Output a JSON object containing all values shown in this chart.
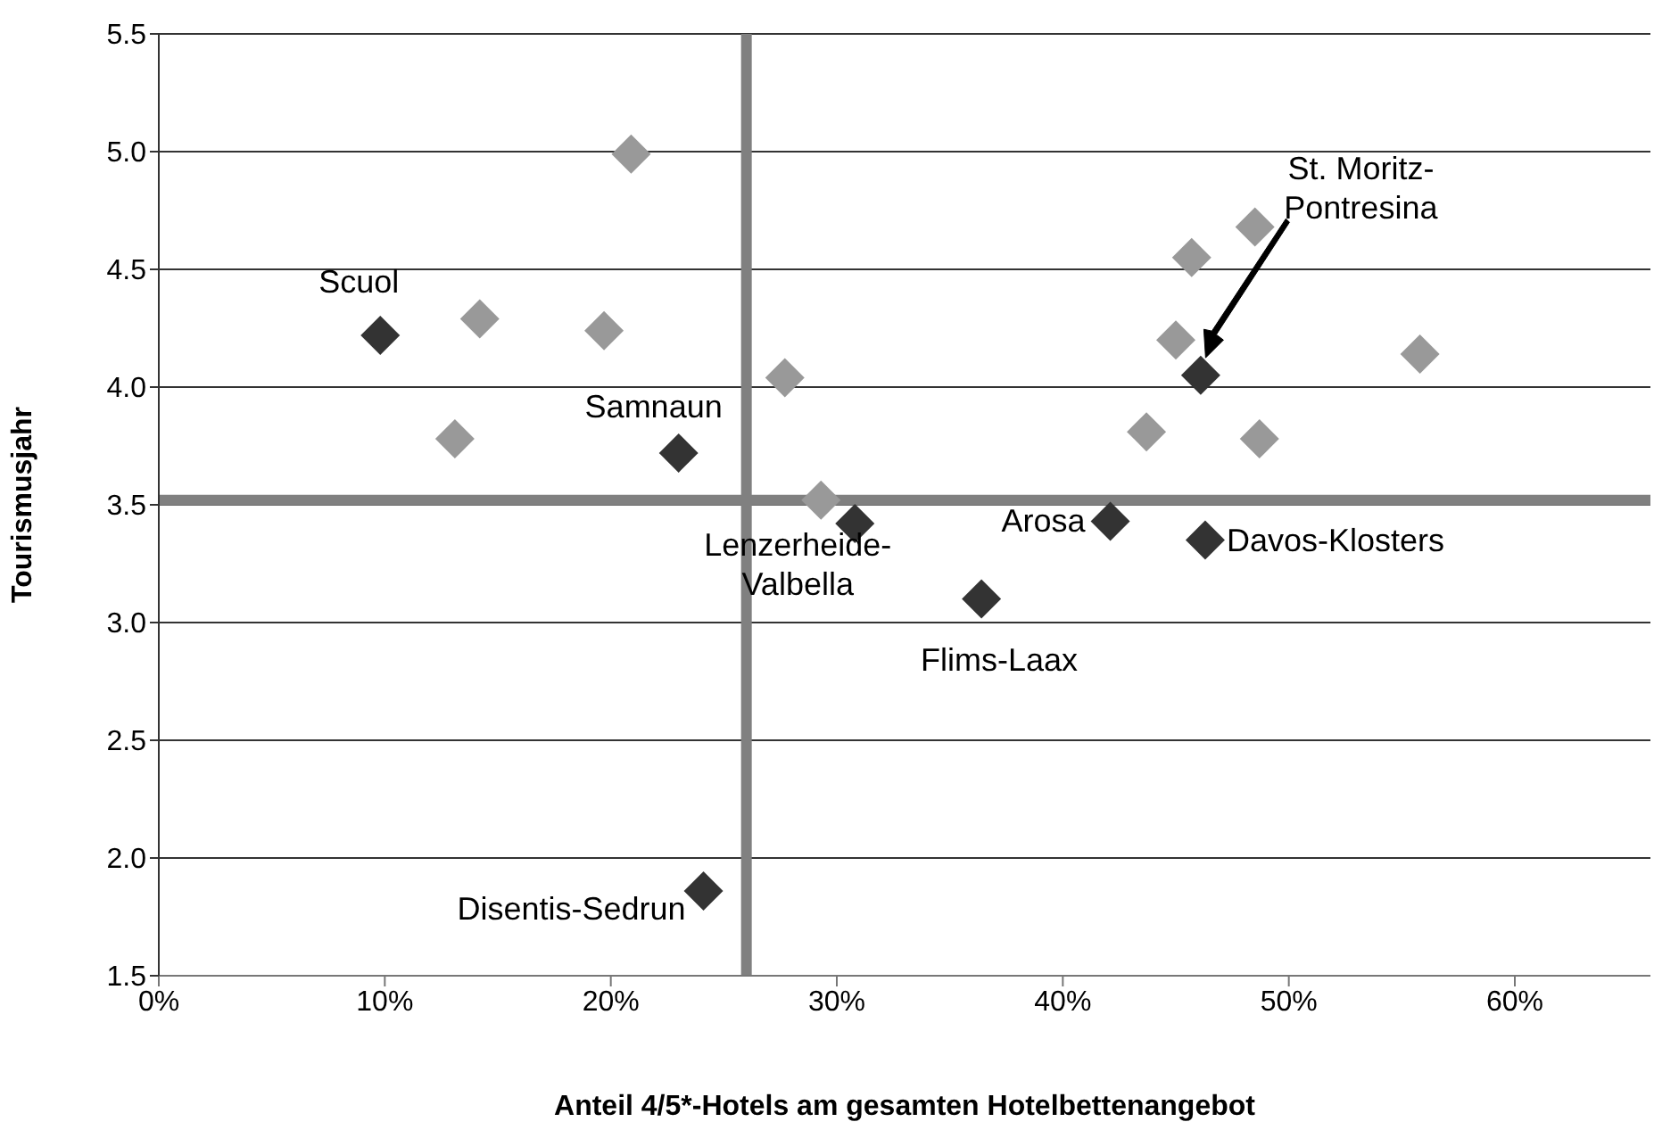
{
  "chart_data": {
    "type": "scatter",
    "xlabel": "Anteil 4/5*-Hotels am gesamten Hotelbettenangebot",
    "ylabel": "Tourismusjahr",
    "xlim": [
      0,
      66
    ],
    "xticks": [
      {
        "value": 0,
        "label": "0%"
      },
      {
        "value": 10,
        "label": "10%"
      },
      {
        "value": 20,
        "label": "20%"
      },
      {
        "value": 30,
        "label": "30%"
      },
      {
        "value": 40,
        "label": "40%"
      },
      {
        "value": 50,
        "label": "50%"
      },
      {
        "value": 60,
        "label": "60%"
      }
    ],
    "ylim": [
      1.5,
      5.5
    ],
    "yticks": [
      1.5,
      {
        "value": 2,
        "label": "2.0"
      },
      2.5,
      {
        "value": 3,
        "label": "3.0"
      },
      3.5,
      {
        "value": 4,
        "label": "4.0"
      },
      4.5,
      {
        "value": 5,
        "label": "5.0"
      },
      5.5
    ],
    "grid": "y",
    "marker": "diamond",
    "legend": false,
    "series": [
      {
        "color": "#999999",
        "x": [
          14.2,
          19.7,
          20.9,
          13.1,
          27.7,
          29.3,
          45.0,
          45.7,
          48.5,
          43.7,
          48.7,
          55.8
        ],
        "values": [
          4.29,
          4.24,
          4.99,
          3.78,
          4.04,
          3.52,
          4.2,
          4.55,
          4.68,
          3.81,
          3.78,
          4.14
        ]
      },
      {
        "color": "#333333",
        "x": [
          9.8,
          23.0,
          30.8,
          42.1,
          46.3,
          46.1,
          36.4,
          24.1
        ],
        "values": [
          4.22,
          3.72,
          3.42,
          3.43,
          3.35,
          4.05,
          3.1,
          1.86
        ]
      }
    ],
    "ref_lines": [
      {
        "axis": "y",
        "value": 3.52,
        "color": "#808080"
      },
      {
        "axis": "x",
        "value": 26,
        "color": "#808080"
      }
    ],
    "annotations": [
      {
        "text": "Scuol",
        "x": 9.8,
        "y": 4.22
      },
      {
        "text": "Samnaun",
        "x": 23.0,
        "y": 3.72
      },
      {
        "text": "Lenzerheide-Valbella",
        "x": 30.8,
        "y": 3.42
      },
      {
        "text": "Arosa",
        "x": 42.1,
        "y": 3.43
      },
      {
        "text": "Davos-Klosters",
        "x": 46.3,
        "y": 3.35
      },
      "St. Moritz-Pontresina",
      {
        "text": "Flims-Laax",
        "x": 36.4,
        "y": 3.1
      },
      {
        "text": "Disentis-Sedrun",
        "x": 24.1,
        "y": 1.86
      }
    ]
  }
}
